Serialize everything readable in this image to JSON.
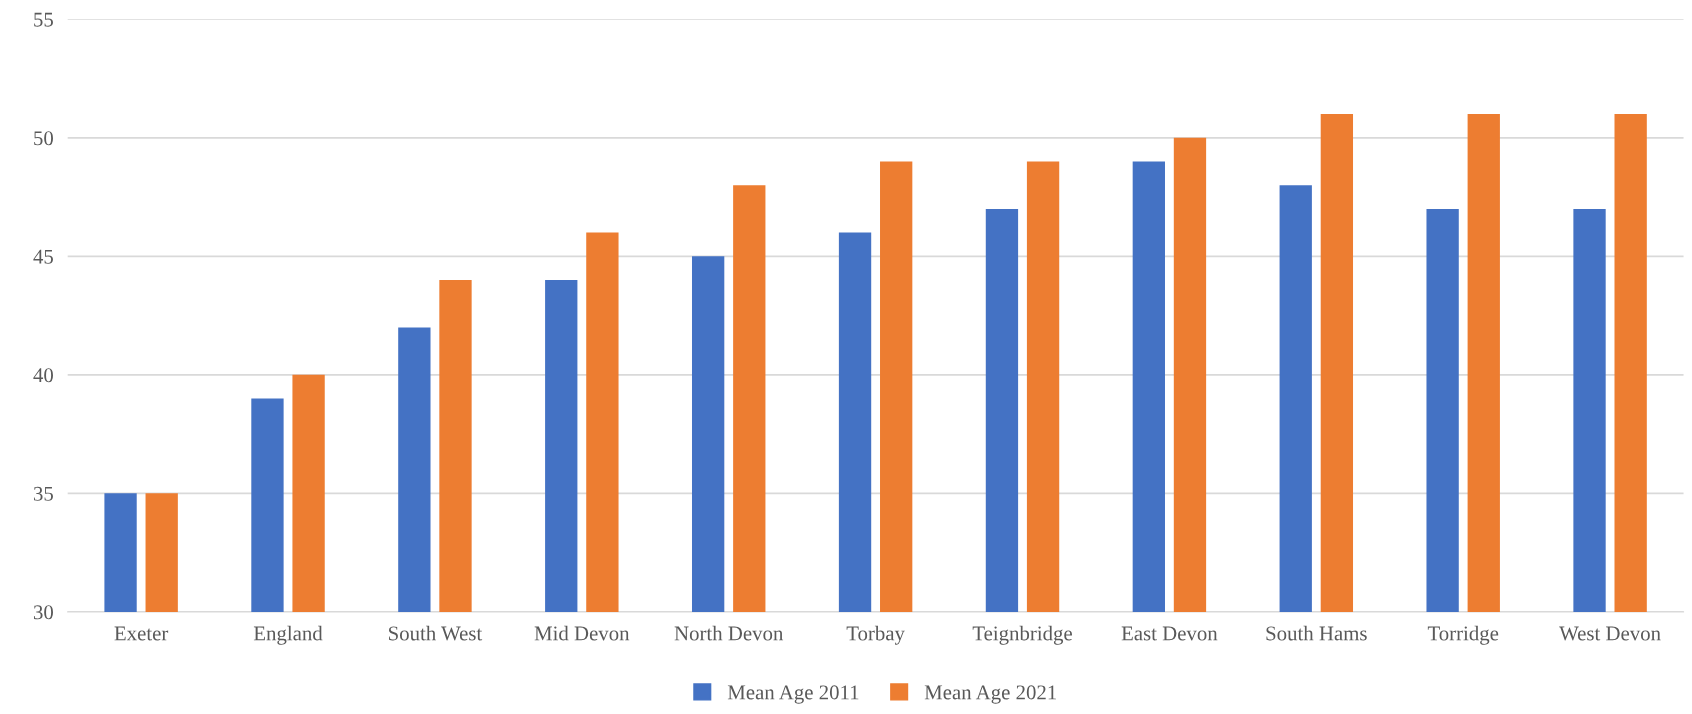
{
  "chart_data": {
    "type": "bar",
    "categories": [
      "Exeter",
      "England",
      "South West",
      "Mid Devon",
      "North Devon",
      "Torbay",
      "Teignbridge",
      "East Devon",
      "South Hams",
      "Torridge",
      "West Devon"
    ],
    "series": [
      {
        "name": "Mean Age 2011",
        "color": "#4472c4",
        "values": [
          35,
          39,
          42,
          44,
          45,
          46,
          47,
          49,
          48,
          47,
          47
        ]
      },
      {
        "name": "Mean Age 2021",
        "color": "#ed7d31",
        "values": [
          35,
          40,
          44,
          46,
          48,
          49,
          49,
          50,
          51,
          51,
          51
        ]
      }
    ],
    "ylim": [
      30,
      55
    ],
    "yticks": [
      30,
      35,
      40,
      45,
      50,
      55
    ],
    "grid": "y",
    "legend": "bottom"
  }
}
